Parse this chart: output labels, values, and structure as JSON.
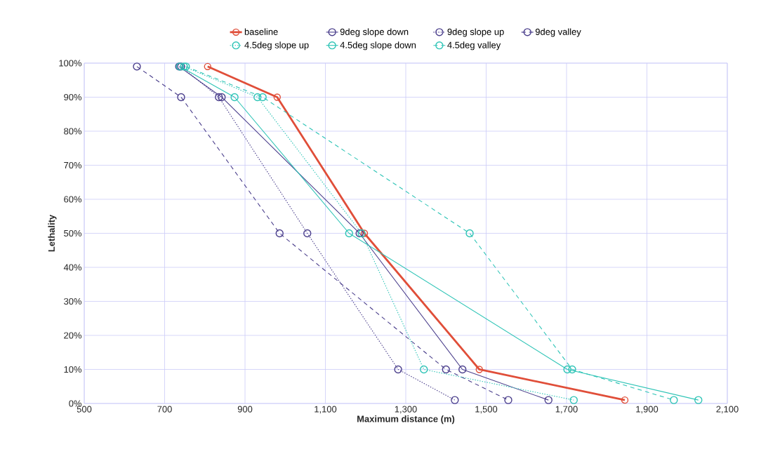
{
  "chart_data": {
    "type": "line",
    "xlabel": "Maximum distance (m)",
    "ylabel": "Lethality",
    "xlim": [
      500,
      2100
    ],
    "xticks": [
      500,
      700,
      900,
      {
        "value": 1100,
        "label": "1,100"
      },
      {
        "value": 1300,
        "label": "1,300"
      },
      {
        "value": 1500,
        "label": "1,500"
      },
      {
        "value": 1700,
        "label": "1,700"
      },
      {
        "value": 1900,
        "label": "1,900"
      },
      {
        "value": 2100,
        "label": "2,100"
      }
    ],
    "ylim": [
      0,
      100
    ],
    "yticks": [
      {
        "value": 0,
        "label": "0%"
      },
      {
        "value": 10,
        "label": "10%"
      },
      {
        "value": 20,
        "label": "20%"
      },
      {
        "value": 30,
        "label": "30%"
      },
      {
        "value": 40,
        "label": "40%"
      },
      {
        "value": 50,
        "label": "50%"
      },
      {
        "value": 60,
        "label": "60%"
      },
      {
        "value": 70,
        "label": "70%"
      },
      {
        "value": 80,
        "label": "80%"
      },
      {
        "value": 90,
        "label": "90%"
      },
      {
        "value": 100,
        "label": "100%"
      }
    ],
    "grid": true,
    "legend": "top",
    "marker": "circle",
    "series": [
      {
        "name": "baseline",
        "color": "#e04e39",
        "line_style": "solid",
        "x": [
          807,
          980,
          1197,
          1483,
          1845
        ],
        "values": [
          99,
          90,
          50,
          10,
          1
        ]
      },
      {
        "name": "9deg slope down",
        "color": "#4b3f8c",
        "line_style": "solid",
        "x": [
          736,
          842,
          1185,
          1441,
          1655
        ],
        "values": [
          99,
          90,
          50,
          10,
          1
        ]
      },
      {
        "name": "9deg slope up",
        "color": "#4b3f8c",
        "line_style": "dotted",
        "x": [
          741,
          835,
          1055,
          1281,
          1422
        ],
        "values": [
          99,
          90,
          50,
          10,
          1
        ]
      },
      {
        "name": "9deg valley",
        "color": "#4b3f8c",
        "line_style": "dashed",
        "x": [
          631,
          741,
          986,
          1400,
          1555
        ],
        "values": [
          99,
          90,
          50,
          10,
          1
        ]
      },
      {
        "name": "4.5deg slope up",
        "color": "#2ec4b6",
        "line_style": "dotted",
        "x": [
          748,
          931,
          1190,
          1345,
          1718
        ],
        "values": [
          99,
          90,
          50,
          10,
          1
        ]
      },
      {
        "name": "4.5deg slope down",
        "color": "#2ec4b6",
        "line_style": "solid",
        "x": [
          738,
          874,
          1159,
          1702,
          2028
        ],
        "values": [
          99,
          90,
          50,
          10,
          1
        ]
      },
      {
        "name": "4.5deg valley",
        "color": "#2ec4b6",
        "line_style": "dashed",
        "x": [
          753,
          944,
          1459,
          1714,
          1967
        ],
        "values": [
          99,
          90,
          50,
          10,
          1
        ]
      }
    ]
  }
}
